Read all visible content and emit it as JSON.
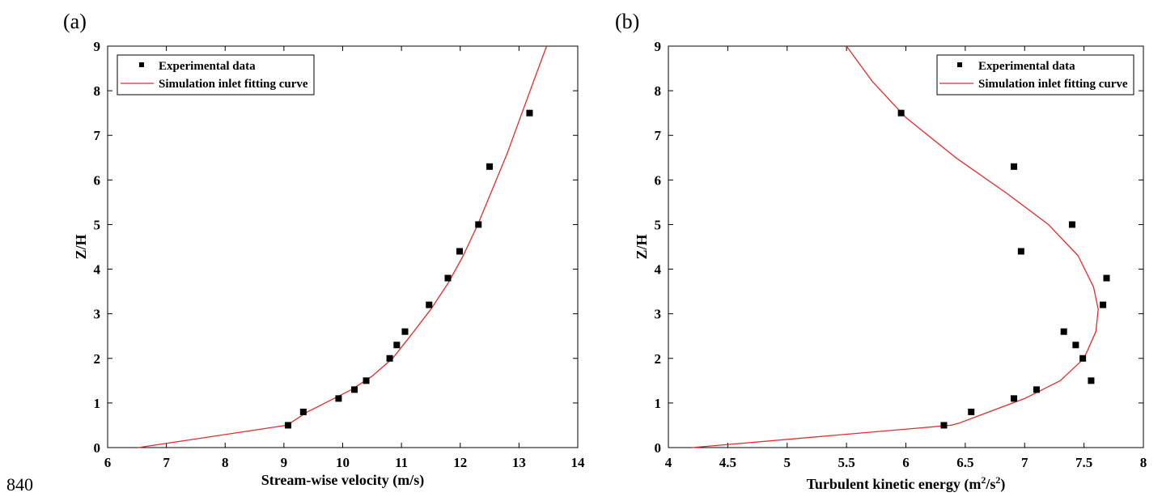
{
  "page_number": "840",
  "chart_data": [
    {
      "type": "scatter",
      "panel_label": "(a)",
      "xlabel": "Stream-wise velocity (m/s)",
      "ylabel": "Z/H",
      "xlim": [
        6,
        14
      ],
      "ylim": [
        0,
        9
      ],
      "xticks": [
        6,
        7,
        8,
        9,
        10,
        11,
        12,
        13,
        14
      ],
      "yticks": [
        0,
        1,
        2,
        3,
        4,
        5,
        6,
        7,
        8,
        9
      ],
      "legend_position": "top-left",
      "series": [
        {
          "name": "Experimental data",
          "kind": "markers",
          "color": "#000000",
          "points": [
            [
              9.07,
              0.5
            ],
            [
              9.33,
              0.8
            ],
            [
              9.93,
              1.1
            ],
            [
              10.2,
              1.3
            ],
            [
              10.4,
              1.5
            ],
            [
              10.8,
              2.0
            ],
            [
              10.92,
              2.3
            ],
            [
              11.06,
              2.6
            ],
            [
              11.47,
              3.2
            ],
            [
              11.79,
              3.8
            ],
            [
              11.99,
              4.4
            ],
            [
              12.31,
              5.0
            ],
            [
              12.5,
              6.3
            ],
            [
              13.18,
              7.5
            ]
          ]
        },
        {
          "name": "Simulation inlet fitting curve",
          "kind": "line",
          "color": "#e8282c",
          "points": [
            [
              6.52,
              0.0
            ],
            [
              9.05,
              0.5
            ],
            [
              9.4,
              0.8
            ],
            [
              9.7,
              1.0
            ],
            [
              10.15,
              1.3
            ],
            [
              10.5,
              1.6
            ],
            [
              10.85,
              2.0
            ],
            [
              11.15,
              2.5
            ],
            [
              11.5,
              3.1
            ],
            [
              11.8,
              3.7
            ],
            [
              12.05,
              4.3
            ],
            [
              12.3,
              5.0
            ],
            [
              12.55,
              5.8
            ],
            [
              12.8,
              6.6
            ],
            [
              13.05,
              7.5
            ],
            [
              13.3,
              8.4
            ],
            [
              13.47,
              9.0
            ]
          ]
        }
      ]
    },
    {
      "type": "scatter",
      "panel_label": "(b)",
      "xlabel": "Turbulent kinetic energy (m",
      "xlabel_sup1": "2",
      "xlabel_mid": "/s",
      "xlabel_sup2": "2",
      "xlabel_end": ")",
      "ylabel": "Z/H",
      "xlim": [
        4,
        8
      ],
      "ylim": [
        0,
        9
      ],
      "xticks": [
        4,
        4.5,
        5,
        5.5,
        6,
        6.5,
        7,
        7.5,
        8
      ],
      "yticks": [
        0,
        1,
        2,
        3,
        4,
        5,
        6,
        7,
        8,
        9
      ],
      "legend_position": "top-right",
      "series": [
        {
          "name": "Experimental data",
          "kind": "markers",
          "color": "#000000",
          "points": [
            [
              6.32,
              0.5
            ],
            [
              6.55,
              0.8
            ],
            [
              6.91,
              1.1
            ],
            [
              7.1,
              1.3
            ],
            [
              7.56,
              1.5
            ],
            [
              7.49,
              2.0
            ],
            [
              7.43,
              2.3
            ],
            [
              7.33,
              2.6
            ],
            [
              7.66,
              3.2
            ],
            [
              7.69,
              3.8
            ],
            [
              6.97,
              4.4
            ],
            [
              7.4,
              5.0
            ],
            [
              6.91,
              6.3
            ],
            [
              5.96,
              7.5
            ]
          ]
        },
        {
          "name": "Simulation inlet fitting curve",
          "kind": "line",
          "color": "#e8282c",
          "points": [
            [
              4.2,
              0.0
            ],
            [
              6.38,
              0.5
            ],
            [
              6.45,
              0.55
            ],
            [
              6.7,
              0.8
            ],
            [
              7.0,
              1.1
            ],
            [
              7.3,
              1.5
            ],
            [
              7.5,
              2.0
            ],
            [
              7.6,
              2.6
            ],
            [
              7.62,
              3.1
            ],
            [
              7.58,
              3.6
            ],
            [
              7.45,
              4.3
            ],
            [
              7.2,
              5.0
            ],
            [
              6.85,
              5.7
            ],
            [
              6.42,
              6.5
            ],
            [
              6.0,
              7.4
            ],
            [
              5.72,
              8.2
            ],
            [
              5.5,
              9.0
            ]
          ]
        }
      ]
    }
  ]
}
